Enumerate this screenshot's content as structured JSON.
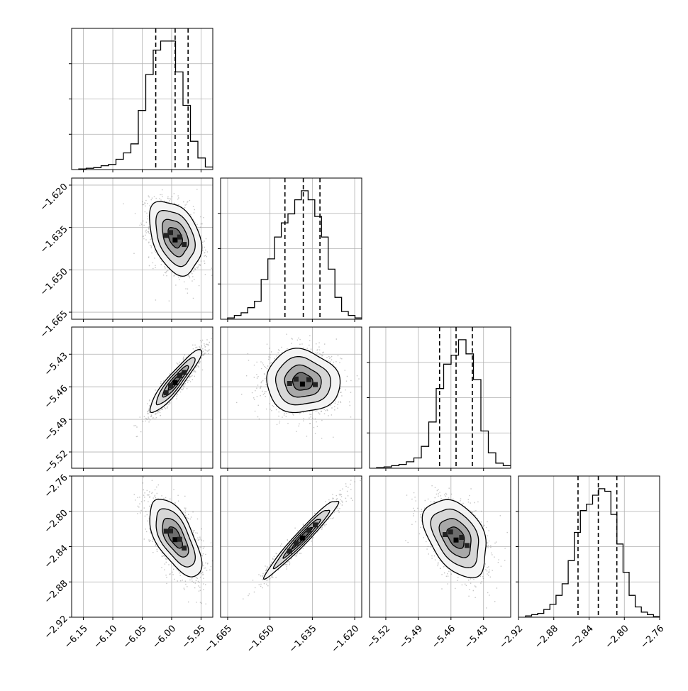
{
  "chart_data": {
    "type": "corner",
    "grid": true,
    "params": [
      {
        "range": [
          -6.17,
          -5.93
        ],
        "ticks": [
          -6.15,
          -6.1,
          -6.05,
          -6.0,
          -5.95
        ],
        "tick_labels": [
          "−6.15",
          "−6.10",
          "−6.05",
          "−6.00",
          "−5.95"
        ],
        "quantiles": [
          -6.027,
          -5.994,
          -5.972
        ],
        "hist_counts": [
          0.5,
          1,
          1.5,
          3,
          4,
          8,
          13,
          20,
          46,
          74,
          93,
          100,
          100,
          76,
          50,
          22,
          9,
          2
        ]
      },
      {
        "range": [
          -1.6675,
          -1.6175
        ],
        "ticks": [
          -1.665,
          -1.65,
          -1.635,
          -1.62
        ],
        "tick_labels": [
          "−1.665",
          "−1.650",
          "−1.635",
          "−1.620"
        ],
        "quantiles": [
          -1.6447,
          -1.6382,
          -1.6323
        ],
        "hist_counts": [
          1,
          3,
          5,
          9,
          14,
          31,
          47,
          64,
          75,
          82,
          93,
          100,
          93,
          80,
          64,
          39,
          17,
          6,
          3,
          1
        ]
      },
      {
        "range": [
          -5.535,
          -5.405
        ],
        "ticks": [
          -5.52,
          -5.49,
          -5.46,
          -5.43
        ],
        "tick_labels": [
          "−5.52",
          "−5.49",
          "−5.46",
          "−5.43"
        ],
        "quantiles": [
          -5.4705,
          -5.4553,
          -5.4403
        ],
        "hist_counts": [
          0.5,
          1,
          2,
          3,
          5,
          8,
          17,
          36,
          62,
          81,
          88,
          100,
          89,
          69,
          29,
          12,
          4,
          2
        ]
      },
      {
        "range": [
          -2.92,
          -2.76
        ],
        "ticks": [
          -2.92,
          -2.88,
          -2.84,
          -2.8,
          -2.76
        ],
        "tick_labels": [
          "−2.92",
          "−2.88",
          "−2.84",
          "−2.80",
          "−2.76"
        ],
        "quantiles": [
          -2.8525,
          -2.8295,
          -2.8085
        ],
        "hist_counts": [
          1,
          2,
          3,
          6,
          10,
          17,
          26,
          44,
          66,
          83,
          88,
          95,
          100,
          98,
          80,
          57,
          35,
          17,
          8,
          4,
          2,
          0.5
        ]
      }
    ],
    "pairs": [
      {
        "x": 0,
        "y": 1,
        "mean": [
          -5.994,
          -1.6385
        ],
        "sd": [
          0.022,
          0.0065
        ],
        "corr": -0.35
      },
      {
        "x": 0,
        "y": 2,
        "mean": [
          -5.994,
          -5.4553
        ],
        "sd": [
          0.022,
          0.0145
        ],
        "corr": 0.92
      },
      {
        "x": 1,
        "y": 2,
        "mean": [
          -1.6385,
          -5.4553
        ],
        "sd": [
          0.0065,
          0.0145
        ],
        "corr": -0.05
      },
      {
        "x": 0,
        "y": 3,
        "mean": [
          -5.994,
          -2.8295
        ],
        "sd": [
          0.022,
          0.022
        ],
        "corr": -0.62
      },
      {
        "x": 1,
        "y": 3,
        "mean": [
          -1.6385,
          -2.8295
        ],
        "sd": [
          0.0065,
          0.022
        ],
        "corr": 0.97
      },
      {
        "x": 2,
        "y": 3,
        "mean": [
          -5.4553,
          -2.8295
        ],
        "sd": [
          0.0145,
          0.022
        ],
        "corr": -0.4
      }
    ],
    "contour_levels_sigma": [
      0.5,
      1.0,
      1.5,
      2.0
    ]
  }
}
